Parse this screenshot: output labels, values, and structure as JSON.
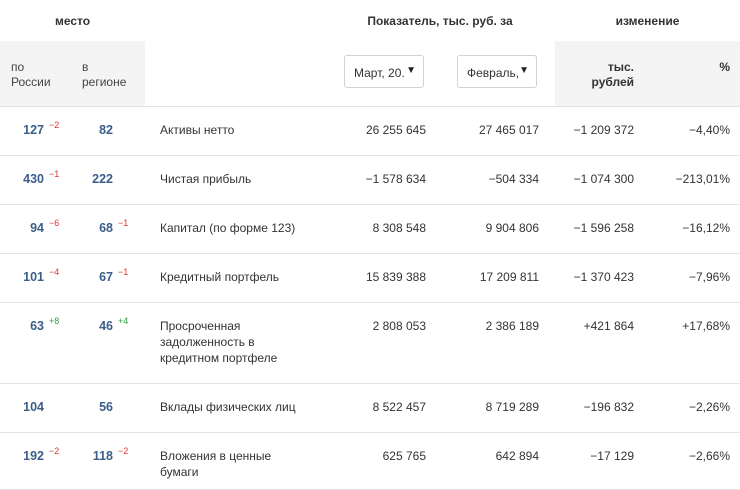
{
  "header": {
    "group_place": "место",
    "group_indicator": "Показатель, тыс. руб. за",
    "group_change": "изменение",
    "col_russia_line1": "по",
    "col_russia_line2": "России",
    "col_region_line1": "в",
    "col_region_line2": "регионе",
    "select_current": "Март, 20.",
    "select_previous": "Февраль,",
    "col_abs_line1": "тыс.",
    "col_abs_line2": "рублей",
    "col_pct": "%"
  },
  "rows": [
    {
      "rank_ru": "127",
      "chg_ru": "−2",
      "chg_ru_type": "neg",
      "rank_reg": "82",
      "chg_reg": "",
      "chg_reg_type": "",
      "name": "Активы нетто",
      "cur": "26 255 645",
      "prev": "27 465 017",
      "abs": "−1 209 372",
      "pct": "−4,40%",
      "sign": "neg"
    },
    {
      "rank_ru": "430",
      "chg_ru": "−1",
      "chg_ru_type": "neg",
      "rank_reg": "222",
      "chg_reg": "",
      "chg_reg_type": "",
      "name": "Чистая прибыль",
      "cur": "−1 578 634",
      "prev": "−504 334",
      "abs": "−1 074 300",
      "pct": "−213,01%",
      "sign": "neg"
    },
    {
      "rank_ru": "94",
      "chg_ru": "−6",
      "chg_ru_type": "neg",
      "rank_reg": "68",
      "chg_reg": "−1",
      "chg_reg_type": "neg",
      "name": "Капитал (по форме 123)",
      "cur": "8 308 548",
      "prev": "9 904 806",
      "abs": "−1 596 258",
      "pct": "−16,12%",
      "sign": "neg"
    },
    {
      "rank_ru": "101",
      "chg_ru": "−4",
      "chg_ru_type": "neg",
      "rank_reg": "67",
      "chg_reg": "−1",
      "chg_reg_type": "neg",
      "name": "Кредитный портфель",
      "cur": "15 839 388",
      "prev": "17 209 811",
      "abs": "−1 370 423",
      "pct": "−7,96%",
      "sign": "neg"
    },
    {
      "rank_ru": "63",
      "chg_ru": "+8",
      "chg_ru_type": "pos",
      "rank_reg": "46",
      "chg_reg": "+4",
      "chg_reg_type": "pos",
      "name": "Просроченная задолженность в кредитном портфеле",
      "cur": "2 808 053",
      "prev": "2 386 189",
      "abs": "+421 864",
      "pct": "+17,68%",
      "sign": "pos"
    },
    {
      "rank_ru": "104",
      "chg_ru": "",
      "chg_ru_type": "",
      "rank_reg": "56",
      "chg_reg": "",
      "chg_reg_type": "",
      "name": "Вклады физических лиц",
      "cur": "8 522 457",
      "prev": "8 719 289",
      "abs": "−196 832",
      "pct": "−2,26%",
      "sign": "neg"
    },
    {
      "rank_ru": "192",
      "chg_ru": "−2",
      "chg_ru_type": "neg",
      "rank_reg": "118",
      "chg_reg": "−2",
      "chg_reg_type": "neg",
      "name": "Вложения в ценные бумаги",
      "cur": "625 765",
      "prev": "642 894",
      "abs": "−17 129",
      "pct": "−2,66%",
      "sign": "neg"
    }
  ]
}
